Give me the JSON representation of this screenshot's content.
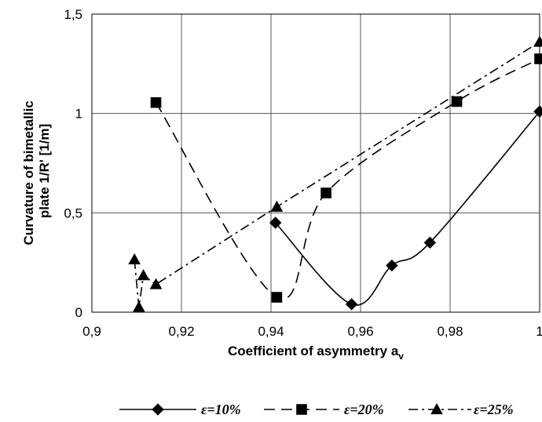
{
  "chart_data": {
    "type": "line",
    "xlabel": "Coefficient of asymmetry a",
    "xlabel_sub": "v",
    "ylabel_line1": "Curvature of bimetallic",
    "ylabel_line2": "plate 1/R' [1/m]",
    "xlim": [
      0.9,
      1.0
    ],
    "ylim": [
      0,
      1.5
    ],
    "x_ticks": [
      0.9,
      0.92,
      0.94,
      0.96,
      0.98,
      1.0
    ],
    "x_tick_labels": [
      "0,9",
      "0,92",
      "0,94",
      "0,96",
      "0,98",
      "1"
    ],
    "y_ticks": [
      0,
      0.5,
      1,
      1.5
    ],
    "y_tick_labels": [
      "0",
      "0,5",
      "1",
      "1,5"
    ],
    "grid": true,
    "legend_position": "bottom",
    "series": [
      {
        "name": "ε=10%",
        "marker": "diamond",
        "dash": "solid",
        "color": "#000000",
        "x": [
          0.941,
          0.958,
          0.967,
          0.9755,
          1.0
        ],
        "y": [
          0.45,
          0.04,
          0.235,
          0.35,
          1.01
        ]
      },
      {
        "name": "ε=20%",
        "marker": "square",
        "dash": "dashed",
        "color": "#000000",
        "x": [
          0.9143,
          0.9413,
          0.9523,
          0.9815,
          1.0
        ],
        "y": [
          1.055,
          0.075,
          0.6,
          1.06,
          1.275
        ]
      },
      {
        "name": "ε=25%",
        "marker": "triangle",
        "dash": "dashdot",
        "color": "#000000",
        "x": [
          0.9095,
          0.9105,
          0.9115,
          0.9143,
          0.9413,
          1.0
        ],
        "y": [
          0.265,
          0.025,
          0.185,
          0.14,
          0.53,
          1.36
        ]
      }
    ]
  }
}
